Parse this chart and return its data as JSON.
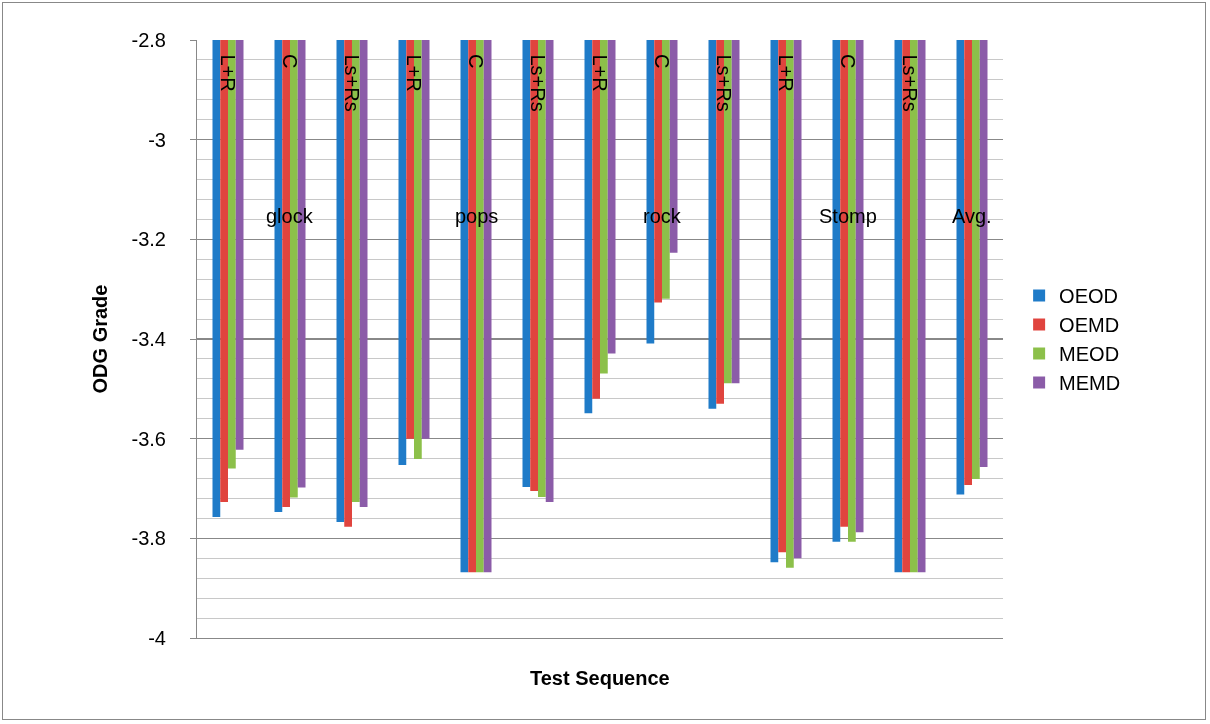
{
  "chart_data": {
    "type": "bar",
    "xlabel": "Test Sequence",
    "ylabel": "ODG Grade",
    "categories": [
      "L+R",
      "C",
      "Ls+Rs",
      "L+R",
      "C",
      "Ls+Rs",
      "L+R",
      "C",
      "Ls+Rs",
      "L+R",
      "C",
      "Ls+Rs",
      null
    ],
    "annotations": [
      "glock",
      "pops",
      "rock",
      "Stomp",
      "Avg."
    ],
    "series": [
      {
        "name": "OEOD",
        "color": "#1f7bc8",
        "values": [
          -3.757,
          -3.747,
          -3.767,
          -3.653,
          -3.868,
          -3.697,
          -3.549,
          -3.409,
          -3.54,
          -3.848,
          -3.807,
          -3.868,
          -3.712
        ]
      },
      {
        "name": "OEMD",
        "color": "#e0443e",
        "values": [
          -3.727,
          -3.737,
          -3.777,
          -3.6,
          -3.868,
          -3.705,
          -3.52,
          -3.327,
          -3.53,
          -3.828,
          -3.777,
          -3.868,
          -3.693
        ]
      },
      {
        "name": "MEOD",
        "color": "#8cc04a",
        "values": [
          -3.66,
          -3.718,
          -3.727,
          -3.641,
          -3.868,
          -3.717,
          -3.469,
          -3.319,
          -3.489,
          -3.859,
          -3.807,
          -3.868,
          -3.681
        ]
      },
      {
        "name": "MEMD",
        "color": "#8b5ca8",
        "values": [
          -3.622,
          -3.698,
          -3.737,
          -3.6,
          -3.868,
          -3.727,
          -3.429,
          -3.227,
          -3.489,
          -3.84,
          -3.788,
          -3.868,
          -3.657
        ]
      }
    ],
    "ylim": [
      -4,
      -2.8
    ],
    "yticks": [
      -4,
      -3.8,
      -3.6,
      -3.4,
      -3.2,
      -3,
      -2.8
    ],
    "grid": "y",
    "legend": "right"
  }
}
